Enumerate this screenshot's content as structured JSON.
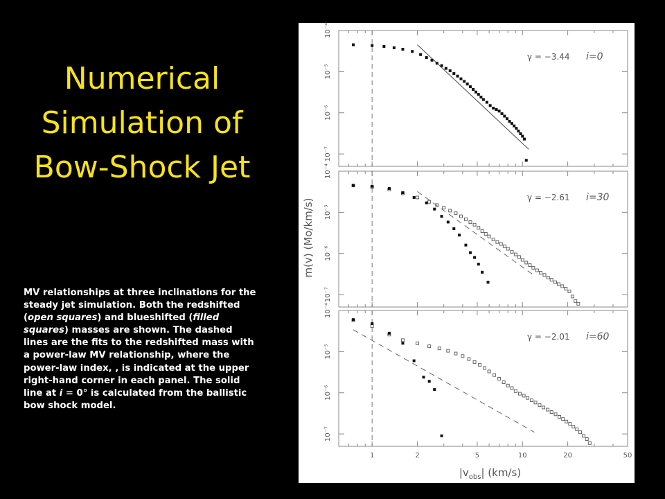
{
  "slide": {
    "title": "Numerical Simulation of Bow-Shock Jet",
    "title_color": "#f7e31a",
    "background": "#000000"
  },
  "caption": {
    "p1": "MV relationships at three inclinations for the steady jet simulation. Both the redshifted (",
    "p1_em": "open squares",
    "p2": ") and blueshifted (",
    "p2_em": "filled squares",
    "p3": ") masses are shown. The dashed lines are the fits to the redshifted mass with a power-law MV relationship, where the power-law index, , is indicated at the upper right-hand corner in each panel. The solid line at ",
    "p3_em": "i",
    "p4": " = 0° is calculated from the ballistic bow shock model."
  },
  "chart_data": {
    "type": "scatter",
    "xlabel": "|v",
    "xlabel_sub": "obs",
    "xlabel_tail": "| (km/s)",
    "ylabel": "m(v) (Mo/km/s)",
    "x_scale": "log",
    "y_scale": "log",
    "xlim": [
      0.6,
      50
    ],
    "ylim": [
      5e-08,
      0.0001
    ],
    "x_ticks": [
      "1",
      "2",
      "5",
      "10",
      "20",
      "50"
    ],
    "y_ticks": [
      "10⁻⁴",
      "10⁻⁵",
      "10⁻⁶",
      "10⁻⁷"
    ],
    "vertical_dashed_at": 1,
    "panels": [
      {
        "gamma_label": "γ = −3.44",
        "i_label": "i=0",
        "filled": [
          [
            0.75,
            4.5e-05
          ],
          [
            1.0,
            4.3e-05
          ],
          [
            1.2,
            4.1e-05
          ],
          [
            1.4,
            3.8e-05
          ],
          [
            1.6,
            3.5e-05
          ],
          [
            1.85,
            3.1e-05
          ],
          [
            2.1,
            2.6e-05
          ],
          [
            2.3,
            2.2e-05
          ],
          [
            2.5,
            1.9e-05
          ],
          [
            2.7,
            1.6e-05
          ],
          [
            2.9,
            1.4e-05
          ],
          [
            3.1,
            1.2e-05
          ],
          [
            3.3,
            1.05e-05
          ],
          [
            3.5,
            9e-06
          ],
          [
            3.7,
            7.8e-06
          ],
          [
            3.9,
            6.7e-06
          ],
          [
            4.1,
            5.8e-06
          ],
          [
            4.3,
            5e-06
          ],
          [
            4.5,
            4.3e-06
          ],
          [
            4.7,
            3.7e-06
          ],
          [
            4.9,
            3.2e-06
          ],
          [
            5.1,
            2.8e-06
          ],
          [
            5.3,
            2.4e-06
          ],
          [
            5.5,
            2.1e-06
          ],
          [
            5.8,
            1.8e-06
          ],
          [
            6.1,
            1.5e-06
          ],
          [
            6.4,
            1.3e-06
          ],
          [
            6.7,
            1.2e-06
          ],
          [
            7.0,
            1.1e-06
          ],
          [
            7.3,
            9.5e-07
          ],
          [
            7.6,
            8.3e-07
          ],
          [
            7.9,
            7.2e-07
          ],
          [
            8.2,
            6.2e-07
          ],
          [
            8.5,
            5.5e-07
          ],
          [
            8.8,
            4.8e-07
          ],
          [
            9.1,
            4.2e-07
          ],
          [
            9.4,
            3.6e-07
          ],
          [
            9.7,
            3.1e-07
          ],
          [
            10.0,
            2.7e-07
          ],
          [
            10.3,
            2.3e-07
          ],
          [
            10.6,
            7e-08
          ]
        ],
        "open": [],
        "solid_fit": [
          [
            2.0,
            4.5e-05
          ],
          [
            11.0,
            1.3e-07
          ]
        ],
        "dashed_fit": []
      },
      {
        "gamma_label": "γ = −2.61",
        "i_label": "i=30",
        "filled": [
          [
            0.75,
            4.5e-05
          ],
          [
            1.0,
            4.3e-05
          ],
          [
            1.3,
            3.8e-05
          ],
          [
            1.6,
            3e-05
          ],
          [
            1.9,
            2.3e-05
          ],
          [
            2.3,
            1.7e-05
          ],
          [
            2.6,
            1.2e-05
          ],
          [
            2.9,
            8e-06
          ],
          [
            3.2,
            5.8e-06
          ],
          [
            3.5,
            4e-06
          ],
          [
            3.8,
            2.8e-06
          ],
          [
            4.2,
            1.6e-06
          ],
          [
            4.5,
            1.05e-06
          ],
          [
            4.8,
            8e-07
          ],
          [
            5.1,
            5.5e-07
          ],
          [
            5.4,
            3.5e-07
          ],
          [
            5.9,
            2e-07
          ]
        ],
        "open": [
          [
            0.75,
            4.5e-05
          ],
          [
            1.0,
            4.1e-05
          ],
          [
            1.3,
            3.6e-05
          ],
          [
            1.6,
            2.9e-05
          ],
          [
            2.0,
            2.3e-05
          ],
          [
            2.4,
            1.8e-05
          ],
          [
            2.7,
            1.5e-05
          ],
          [
            3.0,
            1.3e-05
          ],
          [
            3.3,
            1.1e-05
          ],
          [
            3.6,
            9.5e-06
          ],
          [
            3.9,
            8e-06
          ],
          [
            4.2,
            6.8e-06
          ],
          [
            4.5,
            5.8e-06
          ],
          [
            4.8,
            5e-06
          ],
          [
            5.1,
            4.2e-06
          ],
          [
            5.4,
            3.5e-06
          ],
          [
            5.7,
            3e-06
          ],
          [
            6.0,
            2.6e-06
          ],
          [
            6.4,
            2.2e-06
          ],
          [
            6.8,
            1.9e-06
          ],
          [
            7.2,
            1.7e-06
          ],
          [
            7.6,
            1.5e-06
          ],
          [
            8.0,
            1.3e-06
          ],
          [
            8.5,
            1.1e-06
          ],
          [
            9.0,
            9.5e-07
          ],
          [
            9.5,
            8.2e-07
          ],
          [
            10.0,
            7e-07
          ],
          [
            10.6,
            6e-07
          ],
          [
            11.2,
            5.2e-07
          ],
          [
            11.8,
            4.5e-07
          ],
          [
            12.5,
            3.9e-07
          ],
          [
            13.2,
            3.4e-07
          ],
          [
            14.0,
            3e-07
          ],
          [
            14.8,
            2.6e-07
          ],
          [
            15.6,
            2.3e-07
          ],
          [
            16.5,
            2e-07
          ],
          [
            17.4,
            1.8e-07
          ],
          [
            18.4,
            1.6e-07
          ],
          [
            19.4,
            1.4e-07
          ],
          [
            20.5,
            1.2e-07
          ],
          [
            21.5,
            9e-08
          ],
          [
            22.5,
            7e-08
          ],
          [
            23.5,
            6e-08
          ]
        ],
        "solid_fit": [],
        "dashed_fit": [
          [
            2.0,
            3.2e-05
          ],
          [
            12.0,
            2.9e-07
          ]
        ]
      },
      {
        "gamma_label": "γ = −2.01",
        "i_label": "i=60",
        "filled": [
          [
            0.75,
            6e-05
          ],
          [
            1.0,
            4.8e-05
          ],
          [
            1.3,
            2.8e-05
          ],
          [
            1.6,
            1.6e-05
          ],
          [
            1.9,
            6e-06
          ],
          [
            2.2,
            2.4e-06
          ],
          [
            2.4,
            1.9e-06
          ],
          [
            2.6,
            1.2e-06
          ],
          [
            2.9,
            9e-08
          ]
        ],
        "open": [
          [
            0.75,
            5.8e-05
          ],
          [
            1.0,
            4.2e-05
          ],
          [
            1.3,
            2.6e-05
          ],
          [
            1.6,
            1.9e-05
          ],
          [
            2.0,
            1.6e-05
          ],
          [
            2.4,
            1.35e-05
          ],
          [
            2.8,
            1.2e-05
          ],
          [
            3.2,
            1.05e-05
          ],
          [
            3.6,
            9e-06
          ],
          [
            4.0,
            7.8e-06
          ],
          [
            4.4,
            6.6e-06
          ],
          [
            4.8,
            5.6e-06
          ],
          [
            5.2,
            4.8e-06
          ],
          [
            5.6,
            4e-06
          ],
          [
            6.0,
            3.3e-06
          ],
          [
            6.5,
            2.7e-06
          ],
          [
            7.0,
            2.2e-06
          ],
          [
            7.5,
            1.8e-06
          ],
          [
            8.0,
            1.5e-06
          ],
          [
            8.5,
            1.3e-06
          ],
          [
            9.0,
            1.1e-06
          ],
          [
            9.6,
            9.5e-07
          ],
          [
            10.2,
            8.5e-07
          ],
          [
            10.8,
            7.5e-07
          ],
          [
            11.5,
            6.6e-07
          ],
          [
            12.2,
            5.8e-07
          ],
          [
            13.0,
            5e-07
          ],
          [
            13.8,
            4.4e-07
          ],
          [
            14.7,
            3.9e-07
          ],
          [
            15.6,
            3.4e-07
          ],
          [
            16.6,
            3e-07
          ],
          [
            17.6,
            2.6e-07
          ],
          [
            18.6,
            2.3e-07
          ],
          [
            19.6,
            2e-07
          ],
          [
            20.7,
            1.75e-07
          ],
          [
            21.8,
            1.5e-07
          ],
          [
            23.0,
            1.3e-07
          ],
          [
            24.2,
            1.1e-07
          ],
          [
            25.5,
            9e-08
          ],
          [
            26.8,
            7.5e-08
          ],
          [
            28.0,
            6e-08
          ]
        ],
        "solid_fit": [],
        "dashed_fit": [
          [
            0.75,
            3.4e-05
          ],
          [
            12.0,
            1.1e-07
          ]
        ]
      }
    ]
  }
}
